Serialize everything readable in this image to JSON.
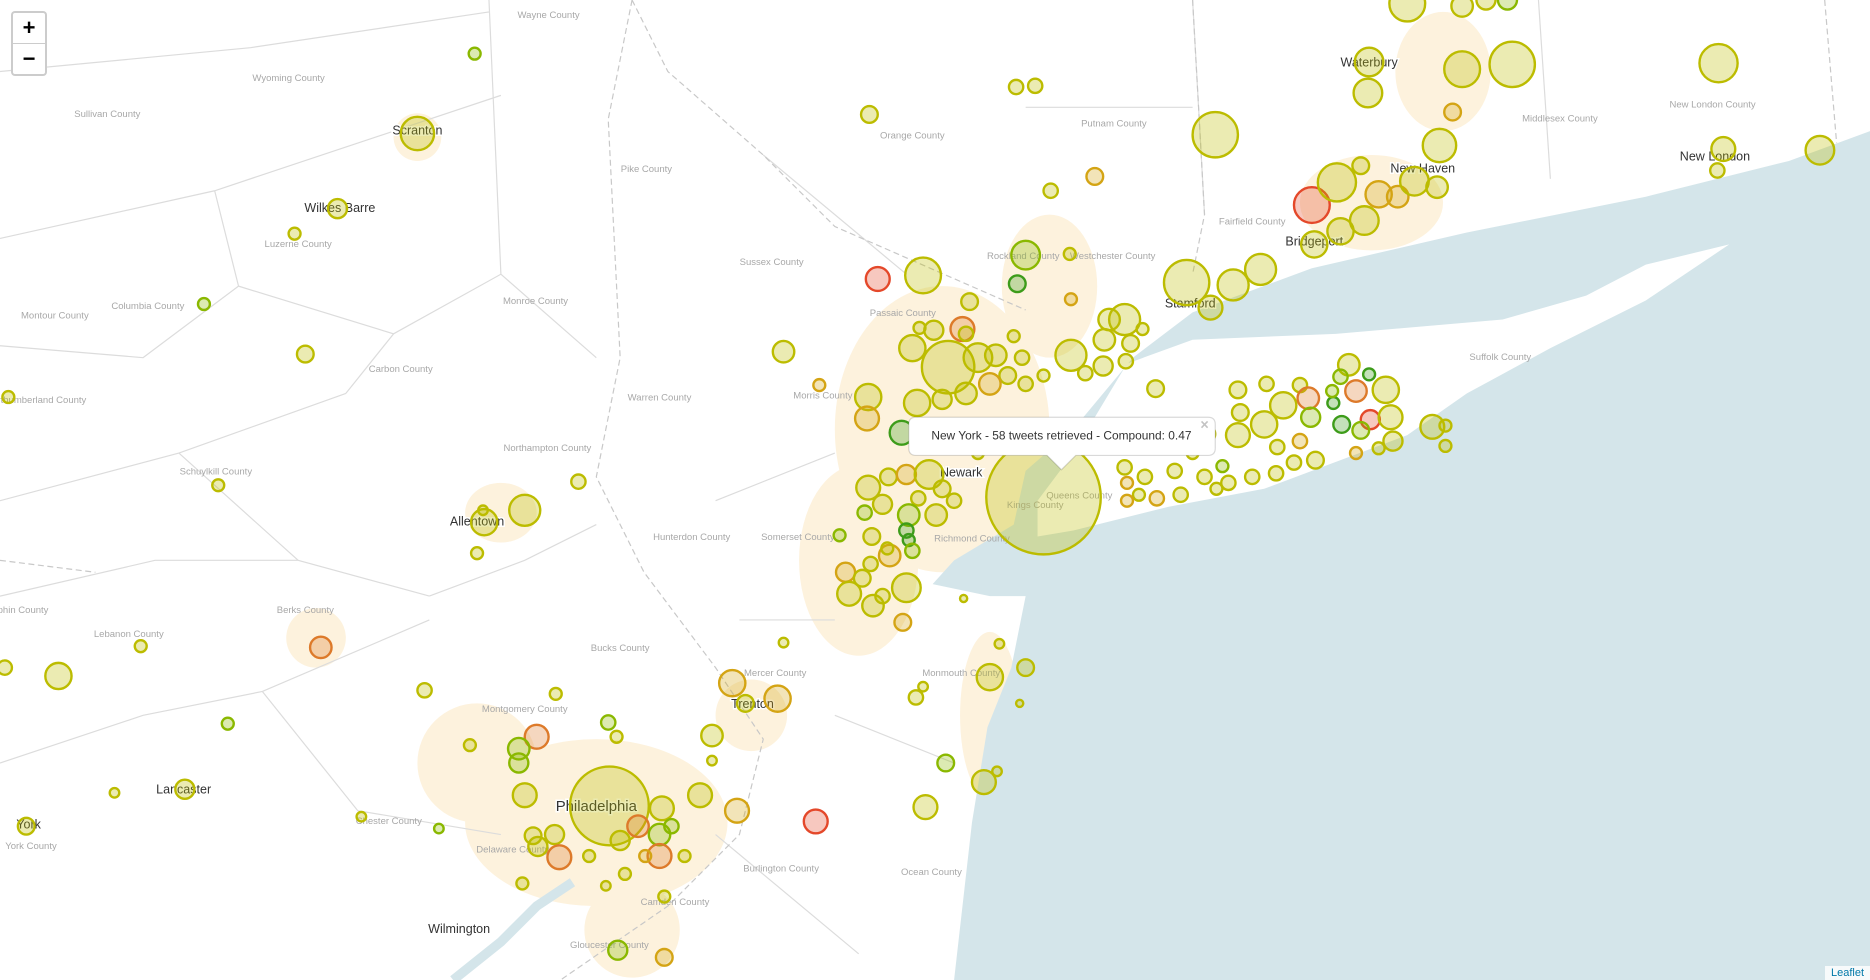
{
  "map": {
    "zoom_controls": [
      "+",
      "−"
    ],
    "attribution": "Leaflet",
    "popup": {
      "text": "New York - 58 tweets retrieved - Compound: 0.47",
      "close": "×"
    },
    "places": [
      "Scranton",
      "Wilkes Barre",
      "Waterbury",
      "New Haven",
      "New London",
      "Bridgeport",
      "Stamford",
      "Allentown",
      "Newark",
      "Trenton",
      "Philadelphia",
      "Lancaster",
      "York",
      "Wilmington"
    ],
    "counties": [
      "Wayne County",
      "Wyoming County",
      "Sullivan County",
      "Orange County",
      "Putnam County",
      "Pike County",
      "Luzerne County",
      "Sussex County",
      "Westchester County",
      "Rockland County",
      "Fairfield County",
      "Middlesex County",
      "New London County",
      "Columbia County",
      "Montour County",
      "Monroe County",
      "Passaic County",
      "Carbon County",
      "Northumberland County",
      "Morris County",
      "Warren County",
      "Northampton County",
      "Schuylkill County",
      "Suffolk County",
      "Hunterdon County",
      "Somerset County",
      "Richmond County",
      "Kings County",
      "Queens County",
      "Lebanon County",
      "Berks County",
      "Dauphin County",
      "Bucks County",
      "Mercer County",
      "Montgomery County",
      "Monmouth County",
      "Chester County",
      "Delaware County",
      "Burlington County",
      "Ocean County",
      "Camden County",
      "Gloucester County",
      "York County"
    ]
  }
}
